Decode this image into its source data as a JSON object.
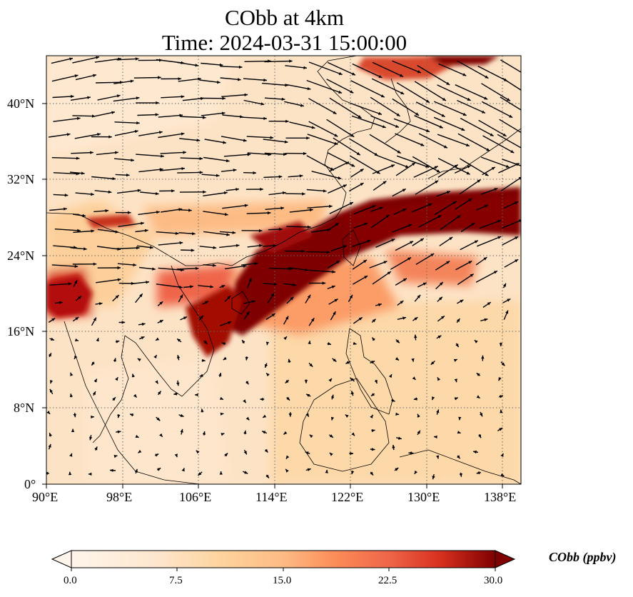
{
  "title": {
    "line1": "CObb at 4km",
    "line2": "Time: 2024-03-31 15:00:00"
  },
  "map": {
    "lon_range": [
      90,
      140
    ],
    "lat_range": [
      0,
      45
    ],
    "lon_ticks": [
      "90°E",
      "98°E",
      "106°E",
      "114°E",
      "122°E",
      "130°E",
      "138°E"
    ],
    "lat_ticks": [
      "0°",
      "8°N",
      "16°N",
      "24°N",
      "32°N",
      "40°N"
    ],
    "gridlines": true,
    "field_colors": [
      "#fff5eb",
      "#fdd49e",
      "#fc8d59",
      "#d7301f",
      "#7f0000"
    ],
    "wind_vectors": "black arrows, westerly flow strongest north of 28°N"
  },
  "colorbar": {
    "label": "CObb (ppbv)",
    "ticks": [
      "0.0",
      "7.5",
      "15.0",
      "22.5",
      "30.0"
    ],
    "range": [
      0,
      30
    ],
    "extend": "both"
  }
}
